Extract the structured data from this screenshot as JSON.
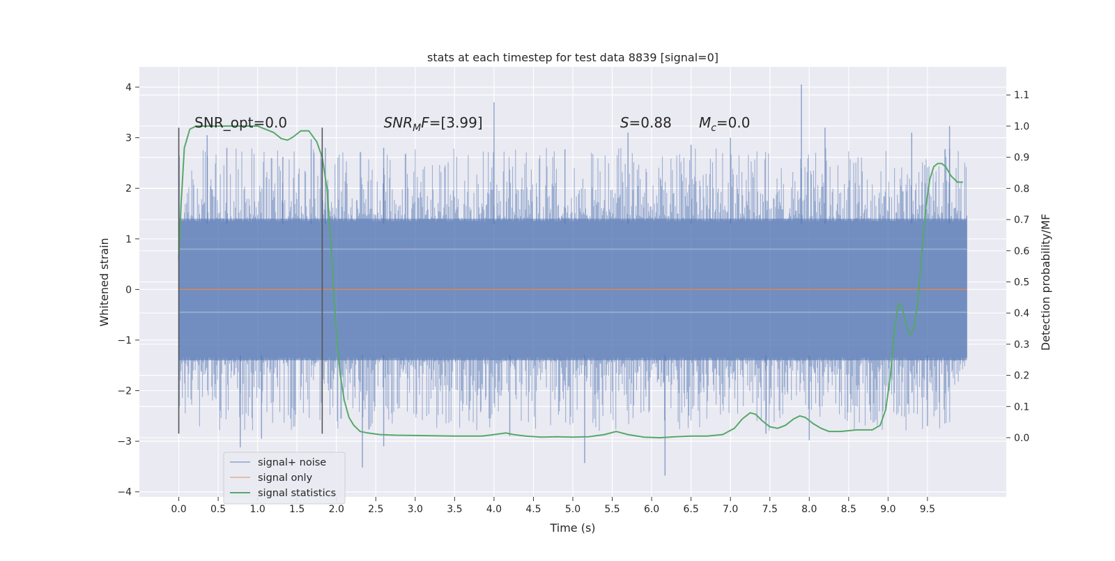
{
  "chart_data": {
    "type": "line",
    "title": "stats at each timestep for test data 8839 [signal=0]",
    "xlabel": "Time (s)",
    "ylabel": "Whitened strain",
    "ylabel_right": "Detection probability/MF",
    "xlim": [
      -0.5,
      10.5
    ],
    "ylim": [
      -4.1,
      4.4
    ],
    "ylim_right": [
      -0.19,
      1.19
    ],
    "x_ticks": [
      0.0,
      0.5,
      1.0,
      1.5,
      2.0,
      2.5,
      3.0,
      3.5,
      4.0,
      4.5,
      5.0,
      5.5,
      6.0,
      6.5,
      7.0,
      7.5,
      8.0,
      8.5,
      9.0,
      9.5
    ],
    "x_tick_labels": [
      "0.0",
      "0.5",
      "1.0",
      "1.5",
      "2.0",
      "2.5",
      "3.0",
      "3.5",
      "4.0",
      "4.5",
      "5.0",
      "5.5",
      "6.0",
      "6.5",
      "7.0",
      "7.5",
      "8.0",
      "8.5",
      "9.0",
      "9.5"
    ],
    "y_ticks": [
      -4,
      -3,
      -2,
      -1,
      0,
      1,
      2,
      3,
      4
    ],
    "y_tick_labels": [
      "−4",
      "−3",
      "−2",
      "−1",
      "0",
      "1",
      "2",
      "3",
      "4"
    ],
    "y_right_ticks": [
      0.0,
      0.1,
      0.2,
      0.3,
      0.4,
      0.5,
      0.6,
      0.7,
      0.8,
      0.9,
      1.0,
      1.1
    ],
    "y_right_tick_labels": [
      "0.0",
      "0.1",
      "0.2",
      "0.3",
      "0.4",
      "0.5",
      "0.6",
      "0.7",
      "0.8",
      "0.9",
      "1.0",
      "1.1"
    ],
    "grid": true,
    "legend": "lower-left",
    "series": [
      {
        "name": "signal+ noise",
        "color": "#4c72b0",
        "axis": "left",
        "style": "noisy-band",
        "x_range": [
          0.0,
          10.0
        ],
        "core_amplitude": 1.4,
        "peak_spikes": [
          {
            "x": 0.36,
            "y": 3.05
          },
          {
            "x": 0.61,
            "y": 2.8
          },
          {
            "x": 1.32,
            "y": 2.62
          },
          {
            "x": 1.68,
            "y": 2.97
          },
          {
            "x": 1.86,
            "y": 2.8
          },
          {
            "x": 2.6,
            "y": 2.8
          },
          {
            "x": 4.0,
            "y": 3.7
          },
          {
            "x": 4.9,
            "y": 2.77
          },
          {
            "x": 5.7,
            "y": 3.1
          },
          {
            "x": 6.5,
            "y": 2.86
          },
          {
            "x": 7.0,
            "y": 3.0
          },
          {
            "x": 7.9,
            "y": 4.05
          },
          {
            "x": 8.2,
            "y": 3.2
          },
          {
            "x": 9.3,
            "y": 3.1
          },
          {
            "x": 9.78,
            "y": 3.23
          }
        ],
        "trough_spikes": [
          {
            "x": 0.78,
            "y": -3.12
          },
          {
            "x": 1.05,
            "y": -2.95
          },
          {
            "x": 2.33,
            "y": -3.52
          },
          {
            "x": 2.6,
            "y": -3.1
          },
          {
            "x": 4.2,
            "y": -2.9
          },
          {
            "x": 5.15,
            "y": -3.43
          },
          {
            "x": 6.17,
            "y": -3.68
          },
          {
            "x": 7.45,
            "y": -2.85
          },
          {
            "x": 8.0,
            "y": -2.98
          },
          {
            "x": 9.5,
            "y": -2.7
          }
        ]
      },
      {
        "name": "signal only",
        "color": "#dd8452",
        "axis": "left",
        "x": [
          0.0,
          10.0
        ],
        "y": [
          0.0,
          0.0
        ]
      },
      {
        "name": "signal statistics",
        "color": "#55a868",
        "axis": "right",
        "x": [
          0.0,
          0.03,
          0.07,
          0.14,
          0.22,
          0.35,
          0.55,
          0.8,
          1.0,
          1.1,
          1.2,
          1.3,
          1.38,
          1.45,
          1.55,
          1.65,
          1.75,
          1.82,
          1.88,
          1.93,
          1.97,
          2.01,
          2.05,
          2.1,
          2.16,
          2.22,
          2.3,
          2.4,
          2.55,
          2.75,
          3.0,
          3.5,
          3.85,
          4.0,
          4.15,
          4.25,
          4.4,
          4.6,
          4.8,
          5.0,
          5.2,
          5.4,
          5.55,
          5.7,
          5.9,
          6.1,
          6.3,
          6.5,
          6.7,
          6.9,
          7.05,
          7.15,
          7.25,
          7.32,
          7.4,
          7.5,
          7.6,
          7.7,
          7.8,
          7.88,
          7.95,
          8.05,
          8.15,
          8.25,
          8.4,
          8.6,
          8.8,
          8.9,
          8.97,
          9.03,
          9.08,
          9.13,
          9.18,
          9.23,
          9.28,
          9.33,
          9.38,
          9.43,
          9.48,
          9.53,
          9.58,
          9.63,
          9.68,
          9.73,
          9.8,
          9.88,
          9.95
        ],
        "y": [
          0.57,
          0.75,
          0.93,
          0.99,
          1.0,
          1.0,
          1.0,
          1.0,
          1.0,
          0.99,
          0.98,
          0.96,
          0.955,
          0.965,
          0.985,
          0.985,
          0.95,
          0.9,
          0.8,
          0.63,
          0.45,
          0.3,
          0.2,
          0.12,
          0.065,
          0.04,
          0.02,
          0.015,
          0.01,
          0.008,
          0.007,
          0.005,
          0.005,
          0.01,
          0.015,
          0.01,
          0.005,
          0.002,
          0.003,
          0.002,
          0.003,
          0.01,
          0.02,
          0.01,
          0.002,
          0.0,
          0.003,
          0.005,
          0.005,
          0.01,
          0.03,
          0.06,
          0.08,
          0.075,
          0.055,
          0.035,
          0.03,
          0.04,
          0.06,
          0.07,
          0.065,
          0.045,
          0.03,
          0.02,
          0.02,
          0.025,
          0.025,
          0.04,
          0.09,
          0.2,
          0.34,
          0.43,
          0.42,
          0.36,
          0.33,
          0.35,
          0.44,
          0.6,
          0.74,
          0.83,
          0.87,
          0.88,
          0.88,
          0.87,
          0.84,
          0.82,
          0.82
        ]
      }
    ],
    "vertical_lines": [
      0.0,
      1.82
    ],
    "vertical_line_range": [
      -2.85,
      3.2
    ],
    "annotations": [
      {
        "x": 0.2,
        "y": 3.2,
        "text": "SNR_opt=0.0"
      },
      {
        "x": 2.6,
        "y": 3.2,
        "text": "SNR_MF=[3.99]"
      },
      {
        "x": 5.6,
        "y": 3.2,
        "text": "S=0.88"
      },
      {
        "x": 6.6,
        "y": 3.2,
        "text": "M_c=0.0"
      }
    ]
  }
}
